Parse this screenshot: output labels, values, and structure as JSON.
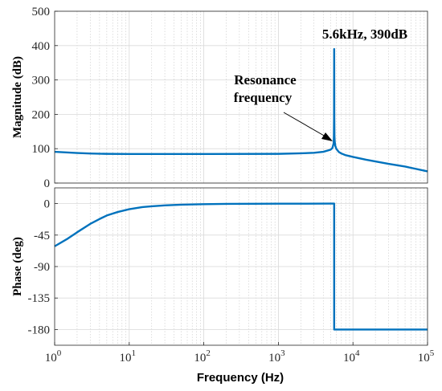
{
  "chart_data": [
    {
      "type": "line",
      "xscale": "log",
      "xlim": [
        1,
        100000
      ],
      "ylim": [
        0,
        500
      ],
      "ylabel": "Magnitude (dB)",
      "yticks": [
        "0",
        "100",
        "200",
        "300",
        "400",
        "500"
      ],
      "yticks_values": [
        0,
        100,
        200,
        300,
        400,
        500
      ],
      "grid": true,
      "series": [
        {
          "color": "#0072bd",
          "x": [
            1,
            1.5,
            2,
            3,
            5,
            10,
            100,
            1000,
            2000,
            3000,
            4000,
            5000,
            5300,
            5500,
            5550,
            5580,
            5600,
            5620,
            5650,
            5700,
            5800,
            6000,
            6500,
            7000,
            8000,
            10000,
            15000,
            20000,
            30000,
            50000,
            100000
          ],
          "y": [
            91,
            89,
            87.5,
            86,
            85,
            84.5,
            84.5,
            85,
            86.5,
            88,
            91,
            97,
            102,
            115,
            135,
            190,
            390,
            190,
            135,
            120,
            108,
            99,
            90,
            86,
            81,
            76,
            68,
            63,
            56,
            48,
            34
          ]
        }
      ]
    },
    {
      "type": "line",
      "xscale": "log",
      "xlim": [
        1,
        100000
      ],
      "ylim": [
        -202.5,
        22.5
      ],
      "ylabel": "Phase (deg)",
      "yticks": [
        "0",
        "-45",
        "-90",
        "-135",
        "-180"
      ],
      "yticks_values": [
        0,
        -45,
        -90,
        -135,
        -180
      ],
      "xlabel": "Frequency  (Hz)",
      "xticks_base": [
        "10",
        "10",
        "10",
        "10",
        "10",
        "10"
      ],
      "xticks_exp": [
        "0",
        "1",
        "2",
        "3",
        "4",
        "5"
      ],
      "xticks_values": [
        1,
        10,
        100,
        1000,
        10000,
        100000
      ],
      "grid": true,
      "series": [
        {
          "color": "#0072bd",
          "x": [
            1,
            1.5,
            2,
            3,
            4,
            5,
            7,
            10,
            15,
            20,
            30,
            50,
            100,
            200,
            1000,
            5000,
            5600,
            5600,
            10000,
            100000
          ],
          "y": [
            -61,
            -50,
            -41,
            -29,
            -22,
            -17,
            -12,
            -8,
            -5,
            -3.8,
            -2.5,
            -1.5,
            -0.8,
            -0.4,
            -0.1,
            0,
            0,
            -180,
            -180,
            -180
          ]
        }
      ]
    }
  ],
  "annotations": {
    "peak_label": "5.6kHz, 390dB",
    "resonance_line1": "Resonance",
    "resonance_line2": "frequency"
  }
}
